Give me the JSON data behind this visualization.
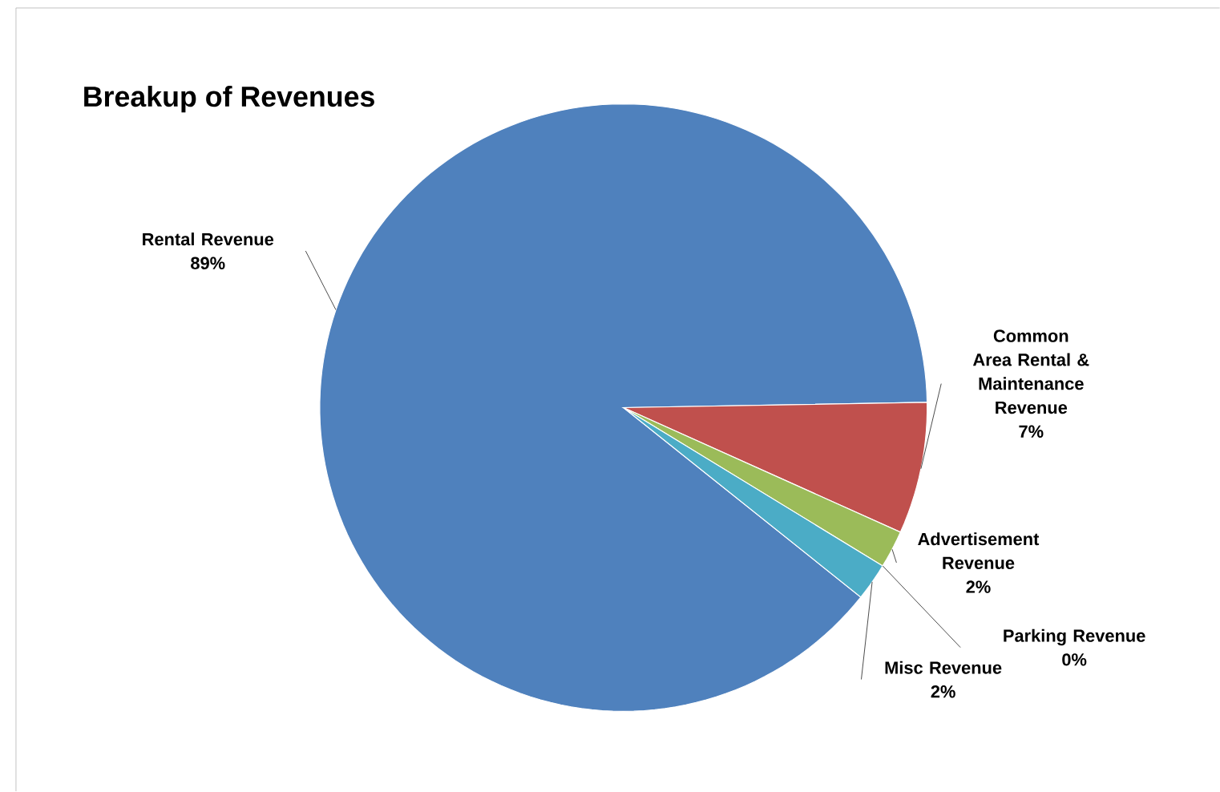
{
  "chart_data": {
    "type": "pie",
    "title": "Breakup of Revenues",
    "categories": [
      "Rental Revenue",
      "Common Area Rental & Maintenance Revenue",
      "Advertisement Revenue",
      "Parking Revenue",
      "Misc Revenue"
    ],
    "values": [
      89,
      7,
      2,
      0,
      2
    ],
    "value_labels": [
      "89%",
      "7%",
      "2%",
      "0%",
      "2%"
    ],
    "colors": [
      "#4f81bd",
      "#c0504d",
      "#9bbb59",
      "#8064a2",
      "#4bacc6"
    ]
  }
}
